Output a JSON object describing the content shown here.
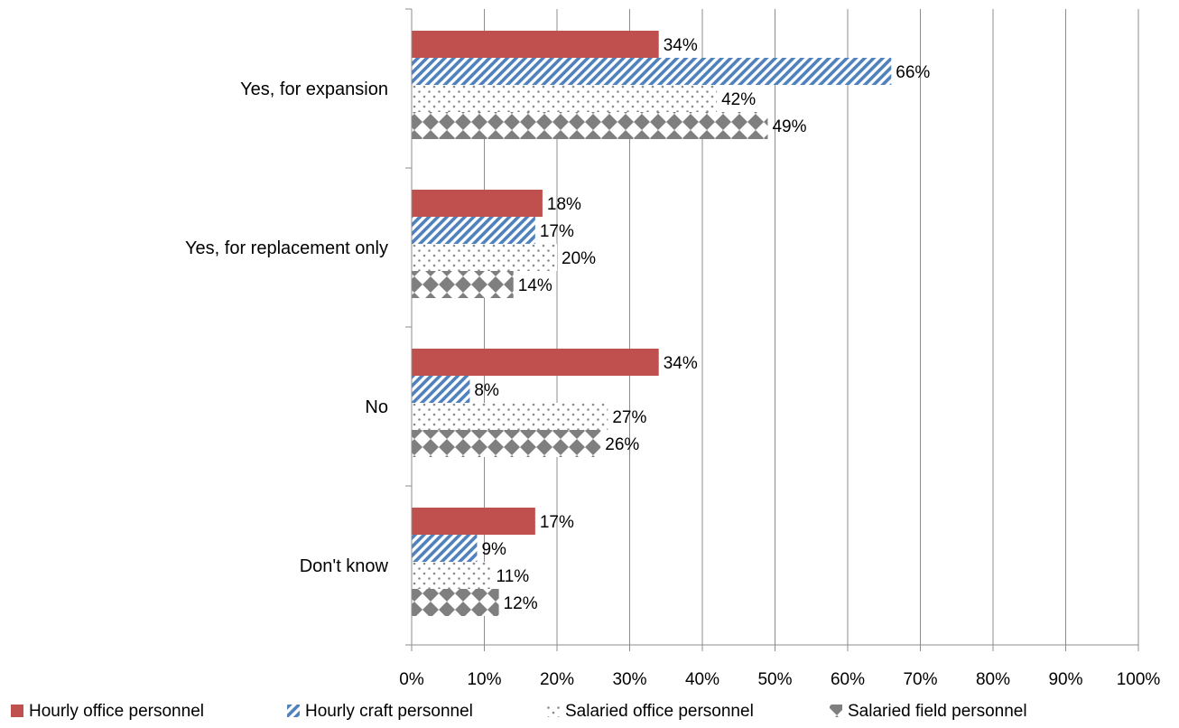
{
  "chart_data": {
    "type": "bar",
    "orientation": "horizontal",
    "categories": [
      "Yes, for expansion",
      "Yes, for replacement only",
      "No",
      "Don't know"
    ],
    "series": [
      {
        "name": "Hourly office personnel",
        "values": [
          34,
          18,
          34,
          17
        ],
        "labels": [
          "34%",
          "18%",
          "34%",
          "17%"
        ],
        "color": "#c0504d",
        "pattern": "solid"
      },
      {
        "name": "Hourly craft personnel",
        "values": [
          66,
          17,
          8,
          9
        ],
        "labels": [
          "66%",
          "17%",
          "8%",
          "9%"
        ],
        "color": "#4f81bd",
        "pattern": "diagonal-stripes"
      },
      {
        "name": "Salaried office personnel",
        "values": [
          42,
          20,
          27,
          11
        ],
        "labels": [
          "42%",
          "20%",
          "27%",
          "11%"
        ],
        "color": "#9a9a9a",
        "pattern": "dots"
      },
      {
        "name": "Salaried field personnel",
        "values": [
          49,
          14,
          26,
          12
        ],
        "labels": [
          "49%",
          "14%",
          "26%",
          "12%"
        ],
        "color": "#808080",
        "pattern": "diamonds"
      }
    ],
    "xlim": [
      0,
      100
    ],
    "x_ticks": [
      "0%",
      "10%",
      "20%",
      "30%",
      "40%",
      "50%",
      "60%",
      "70%",
      "80%",
      "90%",
      "100%"
    ],
    "grid": "vertical",
    "legend": "bottom",
    "title": "",
    "xlabel": "",
    "ylabel": ""
  }
}
